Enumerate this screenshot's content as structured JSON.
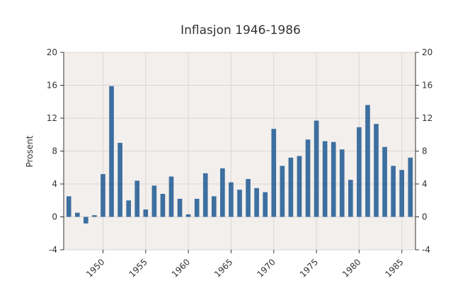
{
  "chart_data": {
    "type": "bar",
    "title": "Inflasjon 1946-1986",
    "xlabel": "",
    "ylabel": "Prosent",
    "x": [
      1946,
      1947,
      1948,
      1949,
      1950,
      1951,
      1952,
      1953,
      1954,
      1955,
      1956,
      1957,
      1958,
      1959,
      1960,
      1961,
      1962,
      1963,
      1964,
      1965,
      1966,
      1967,
      1968,
      1969,
      1970,
      1971,
      1972,
      1973,
      1974,
      1975,
      1976,
      1977,
      1978,
      1979,
      1980,
      1981,
      1982,
      1983,
      1984,
      1985,
      1986
    ],
    "values": [
      2.5,
      0.5,
      -0.8,
      0.2,
      5.2,
      15.9,
      9.0,
      2.0,
      4.4,
      0.9,
      3.8,
      2.8,
      4.9,
      2.2,
      0.3,
      2.2,
      5.3,
      2.5,
      5.9,
      4.2,
      3.3,
      4.6,
      3.5,
      3.0,
      10.7,
      6.2,
      7.2,
      7.4,
      9.4,
      11.7,
      9.2,
      9.1,
      8.2,
      4.5,
      10.9,
      13.6,
      11.3,
      8.5,
      6.2,
      5.7,
      7.2
    ],
    "ylim": [
      -4,
      20
    ],
    "yticks": [
      -4,
      0,
      4,
      8,
      12,
      16,
      20
    ],
    "xticks": [
      1950,
      1955,
      1960,
      1965,
      1970,
      1975,
      1980,
      1985
    ],
    "grid": true,
    "right_axis_labels": true,
    "bar_color": "#3d6fa0",
    "plot_background": "#f3efec",
    "grid_color": "#dad6d3"
  }
}
